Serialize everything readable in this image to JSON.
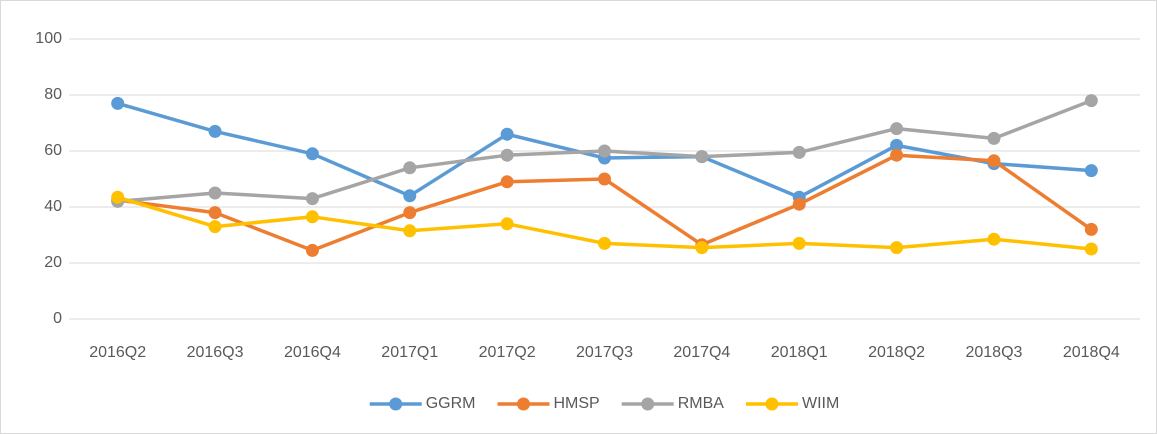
{
  "chart_data": {
    "type": "line",
    "categories": [
      "2016Q2",
      "2016Q3",
      "2016Q4",
      "2017Q1",
      "2017Q2",
      "2017Q3",
      "2017Q4",
      "2018Q1",
      "2018Q2",
      "2018Q3",
      "2018Q4"
    ],
    "series": [
      {
        "name": "GGRM",
        "color": "#5b9bd5",
        "values": [
          77,
          67,
          59,
          44,
          66,
          57.5,
          58,
          43.5,
          62,
          55.5,
          53
        ]
      },
      {
        "name": "HMSP",
        "color": "#ed7d31",
        "values": [
          42.5,
          38,
          24.5,
          38,
          49,
          50,
          26.5,
          41,
          58.5,
          56.5,
          32
        ]
      },
      {
        "name": "RMBA",
        "color": "#a5a5a5",
        "values": [
          42,
          45,
          43,
          54,
          58.5,
          60,
          58,
          59.5,
          68,
          64.5,
          78
        ]
      },
      {
        "name": "WIIM",
        "color": "#ffc000",
        "values": [
          43.5,
          33,
          36.5,
          31.5,
          34,
          27,
          25.5,
          27,
          25.5,
          28.5,
          25
        ]
      }
    ],
    "ylim": [
      0,
      100
    ],
    "yticks": [
      0,
      20,
      40,
      60,
      80,
      100
    ],
    "grid": true,
    "legend": "bottom"
  }
}
